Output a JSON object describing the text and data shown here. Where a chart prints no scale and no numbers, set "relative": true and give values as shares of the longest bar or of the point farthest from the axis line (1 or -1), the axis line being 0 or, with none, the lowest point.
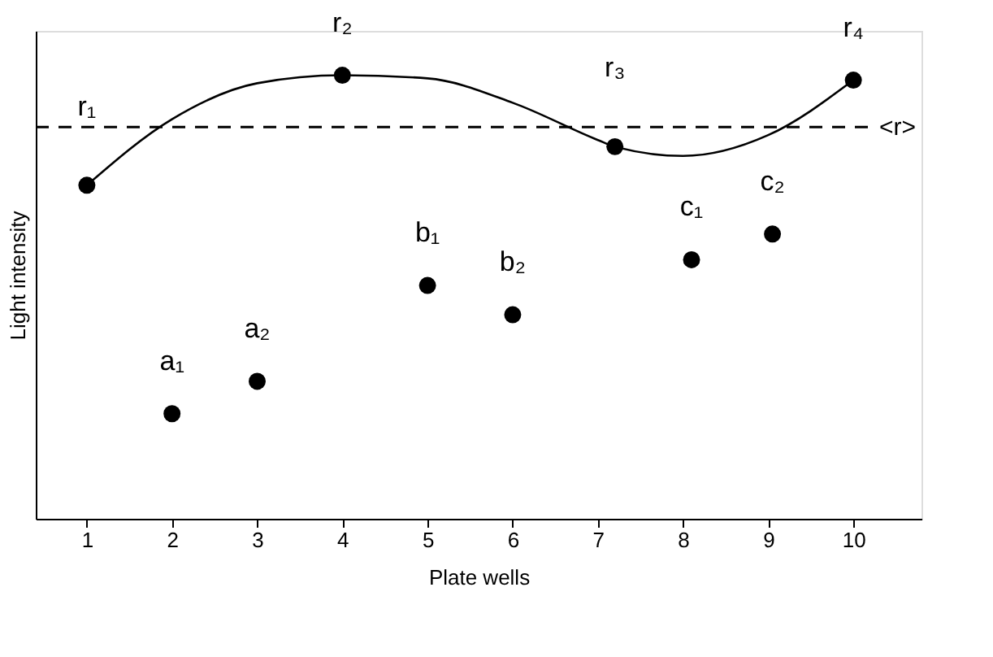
{
  "chart_data": {
    "type": "scatter",
    "xlabel": "Plate wells",
    "ylabel": "Light intensity",
    "relative": true,
    "xlim": [
      0.4,
      10.8
    ],
    "xticks": [
      1,
      2,
      3,
      4,
      5,
      6,
      7,
      8,
      9,
      10
    ],
    "grid": false,
    "marker": "circle",
    "series": [
      {
        "type": "line",
        "color": "#000000",
        "line_style": "solid",
        "marker": "none",
        "x": [
          1,
          2,
          3,
          4,
          5,
          6,
          7,
          7.2,
          8,
          9,
          10
        ],
        "values": [
          0.752,
          0.901,
          0.982,
          1,
          0.993,
          0.938,
          0.854,
          0.839,
          0.818,
          0.865,
          0.989
        ]
      },
      {
        "color": "#000000",
        "x": [
          1,
          4,
          7.2,
          10
        ],
        "values": [
          0.752,
          1,
          0.839,
          0.989
        ]
      },
      {
        "color": "#000000",
        "x": [
          2,
          3,
          5,
          6,
          8.1,
          9.05
        ],
        "values": [
          0.237,
          0.31,
          0.526,
          0.46,
          0.584,
          0.642
        ]
      }
    ],
    "ref_lines": [
      {
        "axis": "y",
        "value": 0.883,
        "label": "<r>",
        "line_style": "dashed",
        "color": "#000000"
      }
    ],
    "annotations": [
      {
        "text": "r₁",
        "x": 1,
        "y": 0.752
      },
      {
        "text": "r₂",
        "x": 4,
        "y": 1
      },
      {
        "text": "r₃",
        "x": 7.2,
        "y": 0.839
      },
      {
        "text": "r₄",
        "x": 10,
        "y": 0.989
      },
      {
        "text": "a₁",
        "x": 2,
        "y": 0.237
      },
      {
        "text": "a₂",
        "x": 3,
        "y": 0.31
      },
      {
        "text": "b₁",
        "x": 5,
        "y": 0.526
      },
      {
        "text": "b₂",
        "x": 6,
        "y": 0.46
      },
      {
        "text": "c₁",
        "x": 8.1,
        "y": 0.584
      },
      {
        "text": "c₂",
        "x": 9.05,
        "y": 0.642
      }
    ]
  }
}
